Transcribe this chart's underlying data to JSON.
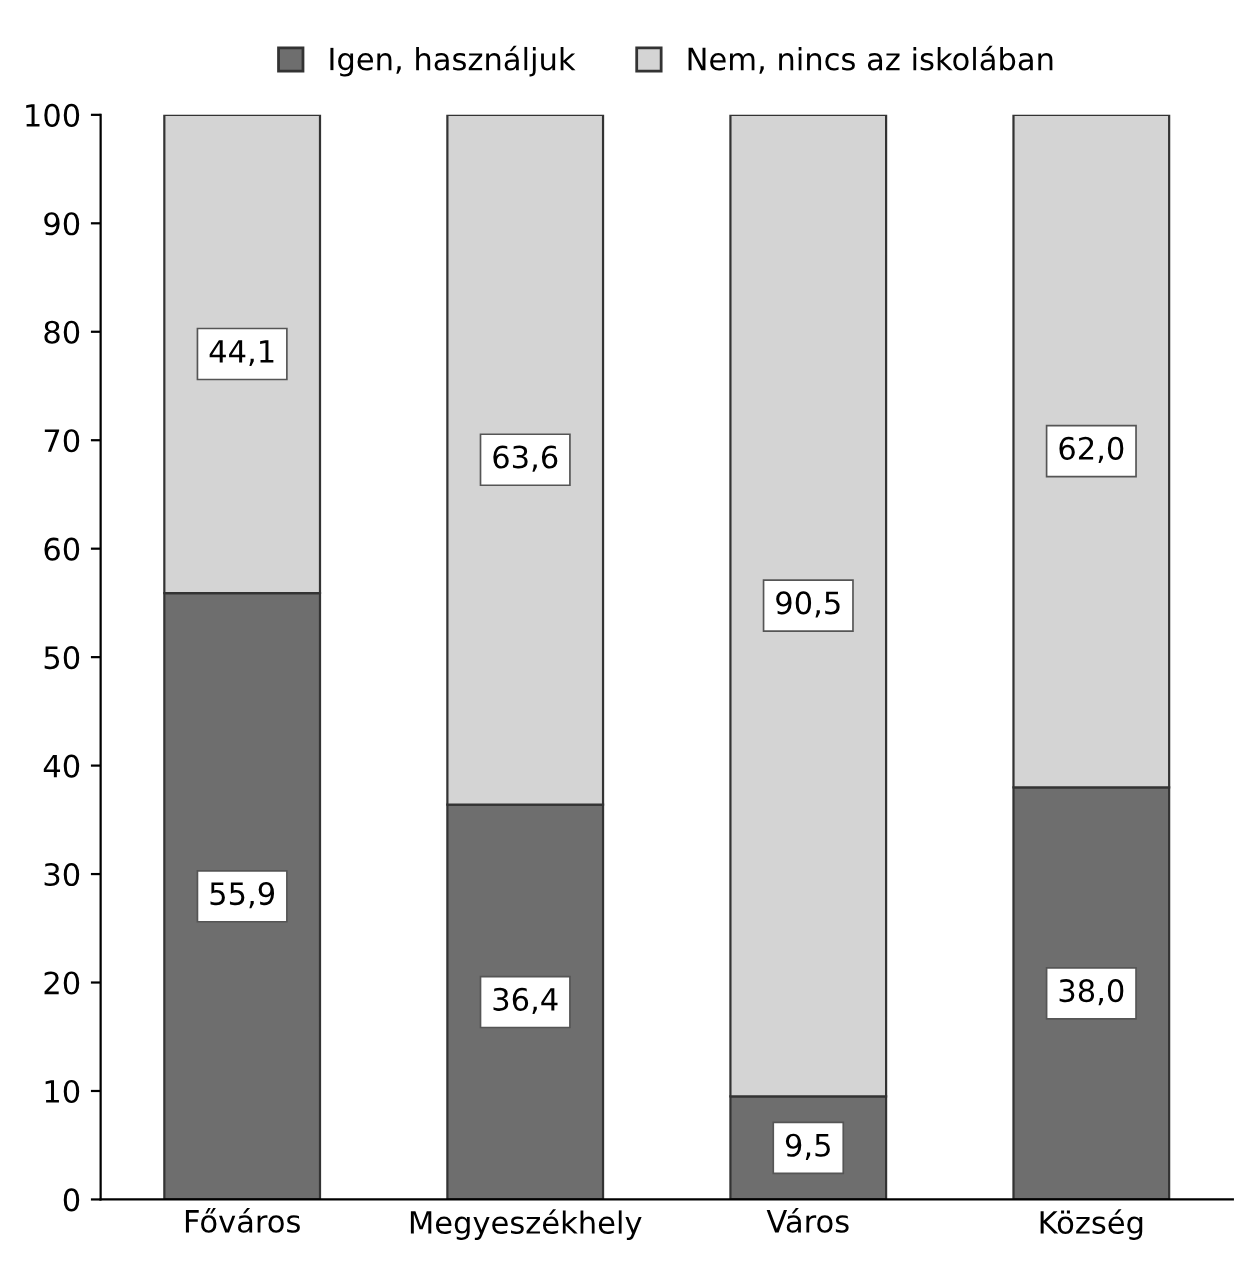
{
  "chart_data": {
    "type": "bar",
    "stacked": true,
    "categories": [
      "Főváros",
      "Megyeszékhely",
      "Város",
      "Község"
    ],
    "series": [
      {
        "name": "Igen, használjuk",
        "color": "#6e6e6e",
        "values": [
          55.9,
          36.4,
          9.5,
          38.0
        ],
        "value_labels": [
          "55,9",
          "36,4",
          "9,5",
          "38,0"
        ]
      },
      {
        "name": "Nem, nincs az iskolában",
        "color": "#d4d4d4",
        "values": [
          44.1,
          63.6,
          90.5,
          62.0
        ],
        "value_labels": [
          "44,1",
          "63,6",
          "90,5",
          "62,0"
        ]
      }
    ],
    "ylim": [
      0,
      100
    ],
    "yticks": [
      0,
      10,
      20,
      30,
      40,
      50,
      60,
      70,
      80,
      90,
      100
    ],
    "grid": false,
    "legend": "top"
  }
}
